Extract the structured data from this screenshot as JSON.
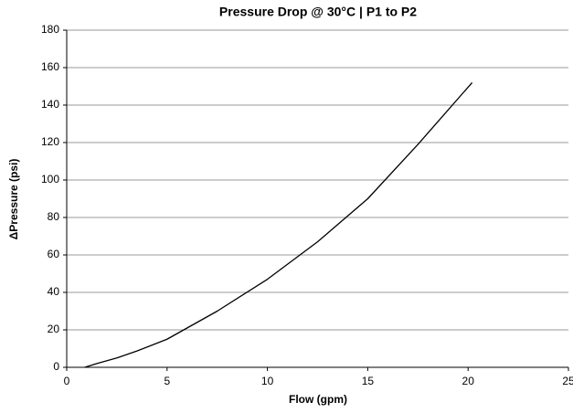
{
  "chart_data": {
    "type": "line",
    "title": "Pressure Drop @ 30°C | P1 to P2",
    "x_label": "Flow (gpm)",
    "y_label": "ΔPressure (psi)",
    "x": [
      0.9,
      1.5,
      2.5,
      3.5,
      5,
      7.5,
      10,
      12.5,
      15,
      17.5,
      20.2
    ],
    "series": [
      {
        "color": "#000000",
        "values": [
          0,
          2,
          5,
          8.7,
          15,
          30,
          47,
          67,
          90,
          119,
          152
        ]
      }
    ],
    "xlim": [
      0,
      25
    ],
    "xticks": [
      0,
      5,
      10,
      15,
      20,
      25
    ],
    "ylim": [
      0,
      180
    ],
    "yticks": [
      0,
      20,
      40,
      60,
      80,
      100,
      120,
      140,
      160,
      180
    ],
    "grid": true
  }
}
